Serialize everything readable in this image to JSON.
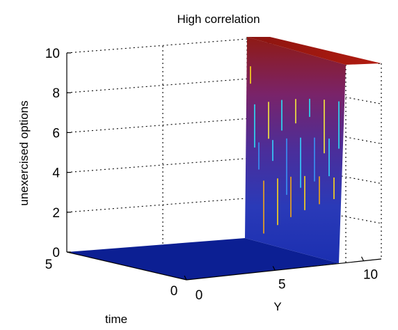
{
  "chart_data": {
    "type": "surface",
    "title": "High correlation",
    "xlabel": "Y",
    "ylabel": "time",
    "zlabel": "unexercised options",
    "x_ticks": [
      "10",
      "5",
      "0"
    ],
    "y_ticks": [
      "5",
      "0"
    ],
    "z_ticks": [
      "0",
      "2",
      "4",
      "6",
      "8",
      "10"
    ],
    "xlim": [
      0,
      11
    ],
    "ylim": [
      0,
      5
    ],
    "zlim": [
      0,
      10
    ],
    "grid": true,
    "colormap": "jet",
    "surface": {
      "low_value": 0,
      "high_value": 10,
      "step_at_Y": 3,
      "description_of_regions": [
        "Y > 3: value 0",
        "Y < 3: value 10"
      ]
    }
  },
  "colors": {
    "low": "#0a1f8f",
    "high": "#8c1a10",
    "axis": "#000000",
    "grid": "#000000"
  }
}
